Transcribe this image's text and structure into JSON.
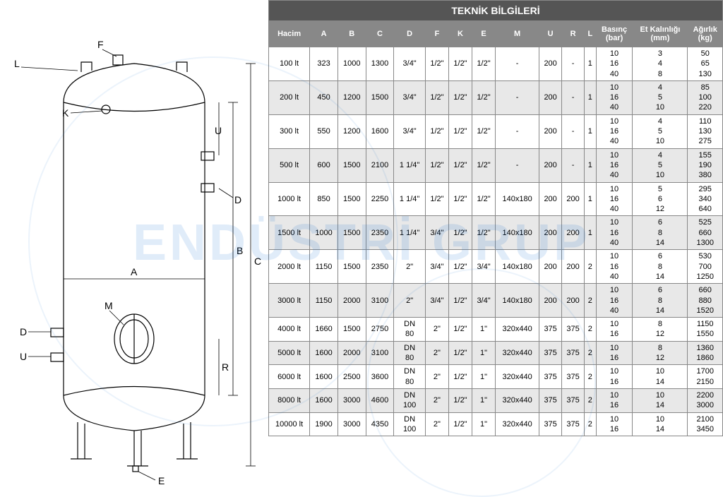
{
  "title": "TEKNİK BİLGİLERİ",
  "watermark": "ENDÜSTRİ GRUP",
  "diagram_labels": {
    "L": "L",
    "F": "F",
    "K": "K",
    "U": "U",
    "D": "D",
    "A": "A",
    "B": "B",
    "C": "C",
    "M": "M",
    "R": "R",
    "E": "E"
  },
  "headers": [
    "Hacim",
    "A",
    "B",
    "C",
    "D",
    "F",
    "K",
    "E",
    "M",
    "U",
    "R",
    "L",
    "Basınç\n(bar)",
    "Et Kalınlığı\n(mm)",
    "Ağırlık\n(kg)"
  ],
  "rows": [
    {
      "hacim": "100 lt",
      "A": "323",
      "B": "1000",
      "C": "1300",
      "D": "3/4\"",
      "F": "1/2\"",
      "K": "1/2\"",
      "E": "1/2\"",
      "M": "-",
      "U": "200",
      "R": "-",
      "L": "1",
      "bar": "10\n16\n40",
      "mm": "3\n4\n8",
      "kg": "50\n65\n130"
    },
    {
      "hacim": "200 lt",
      "A": "450",
      "B": "1200",
      "C": "1500",
      "D": "3/4\"",
      "F": "1/2\"",
      "K": "1/2\"",
      "E": "1/2\"",
      "M": "-",
      "U": "200",
      "R": "-",
      "L": "1",
      "bar": "10\n16\n40",
      "mm": "4\n5\n10",
      "kg": "85\n100\n220"
    },
    {
      "hacim": "300 lt",
      "A": "550",
      "B": "1200",
      "C": "1600",
      "D": "3/4\"",
      "F": "1/2\"",
      "K": "1/2\"",
      "E": "1/2\"",
      "M": "-",
      "U": "200",
      "R": "-",
      "L": "1",
      "bar": "10\n16\n40",
      "mm": "4\n5\n10",
      "kg": "110\n130\n275"
    },
    {
      "hacim": "500 lt",
      "A": "600",
      "B": "1500",
      "C": "2100",
      "D": "1 1/4\"",
      "F": "1/2\"",
      "K": "1/2\"",
      "E": "1/2\"",
      "M": "-",
      "U": "200",
      "R": "-",
      "L": "1",
      "bar": "10\n16\n40",
      "mm": "4\n5\n10",
      "kg": "155\n190\n380"
    },
    {
      "hacim": "1000 lt",
      "A": "850",
      "B": "1500",
      "C": "2250",
      "D": "1 1/4\"",
      "F": "1/2\"",
      "K": "1/2\"",
      "E": "1/2\"",
      "M": "140x180",
      "U": "200",
      "R": "200",
      "L": "1",
      "bar": "10\n16\n40",
      "mm": "5\n6\n12",
      "kg": "295\n340\n640"
    },
    {
      "hacim": "1500 lt",
      "A": "1000",
      "B": "1500",
      "C": "2350",
      "D": "1 1/4\"",
      "F": "3/4\"",
      "K": "1/2\"",
      "E": "1/2\"",
      "M": "140x180",
      "U": "200",
      "R": "200",
      "L": "1",
      "bar": "10\n16\n40",
      "mm": "6\n8\n14",
      "kg": "525\n660\n1300"
    },
    {
      "hacim": "2000 lt",
      "A": "1150",
      "B": "1500",
      "C": "2350",
      "D": "2\"",
      "F": "3/4\"",
      "K": "1/2\"",
      "E": "3/4\"",
      "M": "140x180",
      "U": "200",
      "R": "200",
      "L": "2",
      "bar": "10\n16\n40",
      "mm": "6\n8\n14",
      "kg": "530\n700\n1250"
    },
    {
      "hacim": "3000 lt",
      "A": "1150",
      "B": "2000",
      "C": "3100",
      "D": "2\"",
      "F": "3/4\"",
      "K": "1/2\"",
      "E": "3/4\"",
      "M": "140x180",
      "U": "200",
      "R": "200",
      "L": "2",
      "bar": "10\n16\n40",
      "mm": "6\n8\n14",
      "kg": "660\n880\n1520"
    },
    {
      "hacim": "4000 lt",
      "A": "1660",
      "B": "1500",
      "C": "2750",
      "D": "DN\n80",
      "F": "2\"",
      "K": "1/2\"",
      "E": "1\"",
      "M": "320x440",
      "U": "375",
      "R": "375",
      "L": "2",
      "bar": "10\n16",
      "mm": "8\n12",
      "kg": "1150\n1550"
    },
    {
      "hacim": "5000 lt",
      "A": "1600",
      "B": "2000",
      "C": "3100",
      "D": "DN\n80",
      "F": "2\"",
      "K": "1/2\"",
      "E": "1\"",
      "M": "320x440",
      "U": "375",
      "R": "375",
      "L": "2",
      "bar": "10\n16",
      "mm": "8\n12",
      "kg": "1360\n1860"
    },
    {
      "hacim": "6000 lt",
      "A": "1600",
      "B": "2500",
      "C": "3600",
      "D": "DN\n80",
      "F": "2\"",
      "K": "1/2\"",
      "E": "1\"",
      "M": "320x440",
      "U": "375",
      "R": "375",
      "L": "2",
      "bar": "10\n16",
      "mm": "10\n14",
      "kg": "1700\n2150"
    },
    {
      "hacim": "8000 lt",
      "A": "1600",
      "B": "3000",
      "C": "4600",
      "D": "DN\n100",
      "F": "2\"",
      "K": "1/2\"",
      "E": "1\"",
      "M": "320x440",
      "U": "375",
      "R": "375",
      "L": "2",
      "bar": "10\n16",
      "mm": "10\n14",
      "kg": "2200\n3000"
    },
    {
      "hacim": "10000 lt",
      "A": "1900",
      "B": "3000",
      "C": "4350",
      "D": "DN\n100",
      "F": "2\"",
      "K": "1/2\"",
      "E": "1\"",
      "M": "320x440",
      "U": "375",
      "R": "375",
      "L": "2",
      "bar": "10\n16",
      "mm": "10\n14",
      "kg": "2100\n3450"
    }
  ],
  "table_style": {
    "title_bg": "#555555",
    "title_fg": "#ffffff",
    "header_bg": "#888888",
    "header_fg": "#ffffff",
    "row_even_bg": "#e8e8e8",
    "row_odd_bg": "#ffffff",
    "border_color": "#888888",
    "font_size": 11
  }
}
